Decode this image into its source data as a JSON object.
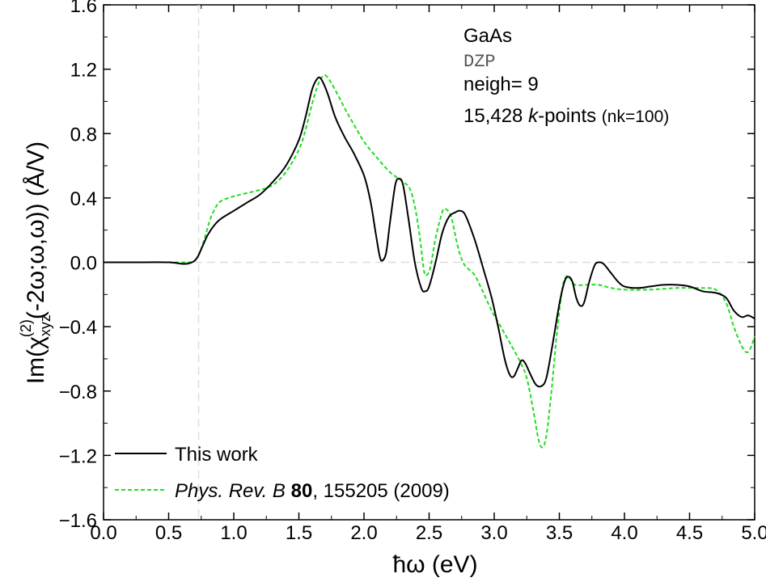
{
  "chart_data": {
    "type": "line",
    "xlabel": "ħω (eV)",
    "ylabel_parts": {
      "prefix": "Im(χ",
      "sub": "xyz",
      "sup": "(2)",
      "suffix": "(-2ω;ω,ω)) (Å/V)"
    },
    "xlim": [
      0.0,
      5.0
    ],
    "ylim": [
      -1.6,
      1.6
    ],
    "xticks": [
      "0.0",
      "0.5",
      "1.0",
      "1.5",
      "2.0",
      "2.5",
      "3.0",
      "3.5",
      "4.0",
      "4.5",
      "5.0"
    ],
    "yticks": [
      "1.6",
      "1.2",
      "0.8",
      "0.4",
      "0.0",
      "−0.4",
      "−0.8",
      "−1.2",
      "−1.6"
    ],
    "reference_lines": {
      "zero_line_y": 0.0,
      "vertical_x": 0.73
    },
    "annotations": {
      "material": "GaAs",
      "basis": "DZP",
      "neigh": "neigh= 9",
      "kpoints_count": "15,428",
      "kpoints_label": "k",
      "kpoints_suffix": "-points",
      "kpoints_nk": "(nk=100)"
    },
    "legend": {
      "position": "bottom-left",
      "entries": [
        {
          "label": "This work",
          "color": "#000000",
          "dash": "solid"
        },
        {
          "label_italic": "Phys. Rev. B",
          "label_bold": "80",
          "label_rest": ", 155205 (2009)",
          "color": "#22dd22",
          "dash": "dashed"
        }
      ]
    },
    "series": [
      {
        "name": "This work",
        "color": "#000000",
        "points": [
          [
            0.0,
            0.0
          ],
          [
            0.3,
            0.0
          ],
          [
            0.5,
            0.0
          ],
          [
            0.62,
            -0.01
          ],
          [
            0.68,
            0.0
          ],
          [
            0.72,
            0.03
          ],
          [
            0.76,
            0.1
          ],
          [
            0.8,
            0.17
          ],
          [
            0.85,
            0.23
          ],
          [
            0.9,
            0.27
          ],
          [
            1.0,
            0.32
          ],
          [
            1.1,
            0.37
          ],
          [
            1.2,
            0.42
          ],
          [
            1.3,
            0.5
          ],
          [
            1.4,
            0.6
          ],
          [
            1.5,
            0.76
          ],
          [
            1.55,
            0.9
          ],
          [
            1.6,
            1.07
          ],
          [
            1.64,
            1.14
          ],
          [
            1.67,
            1.14
          ],
          [
            1.72,
            1.05
          ],
          [
            1.78,
            0.9
          ],
          [
            1.85,
            0.78
          ],
          [
            1.92,
            0.68
          ],
          [
            2.0,
            0.54
          ],
          [
            2.05,
            0.38
          ],
          [
            2.09,
            0.18
          ],
          [
            2.12,
            0.04
          ],
          [
            2.14,
            0.01
          ],
          [
            2.17,
            0.06
          ],
          [
            2.2,
            0.25
          ],
          [
            2.24,
            0.48
          ],
          [
            2.27,
            0.52
          ],
          [
            2.3,
            0.48
          ],
          [
            2.34,
            0.28
          ],
          [
            2.39,
            0.0
          ],
          [
            2.44,
            -0.16
          ],
          [
            2.47,
            -0.18
          ],
          [
            2.5,
            -0.15
          ],
          [
            2.55,
            0.0
          ],
          [
            2.6,
            0.18
          ],
          [
            2.65,
            0.28
          ],
          [
            2.7,
            0.31
          ],
          [
            2.74,
            0.32
          ],
          [
            2.78,
            0.29
          ],
          [
            2.85,
            0.14
          ],
          [
            2.92,
            -0.05
          ],
          [
            2.98,
            -0.22
          ],
          [
            3.03,
            -0.4
          ],
          [
            3.08,
            -0.6
          ],
          [
            3.12,
            -0.7
          ],
          [
            3.15,
            -0.71
          ],
          [
            3.18,
            -0.66
          ],
          [
            3.21,
            -0.61
          ],
          [
            3.24,
            -0.63
          ],
          [
            3.28,
            -0.7
          ],
          [
            3.32,
            -0.76
          ],
          [
            3.36,
            -0.77
          ],
          [
            3.4,
            -0.72
          ],
          [
            3.45,
            -0.5
          ],
          [
            3.5,
            -0.26
          ],
          [
            3.54,
            -0.12
          ],
          [
            3.57,
            -0.09
          ],
          [
            3.6,
            -0.12
          ],
          [
            3.63,
            -0.22
          ],
          [
            3.66,
            -0.27
          ],
          [
            3.69,
            -0.25
          ],
          [
            3.73,
            -0.12
          ],
          [
            3.77,
            -0.02
          ],
          [
            3.8,
            0.0
          ],
          [
            3.84,
            -0.01
          ],
          [
            3.9,
            -0.07
          ],
          [
            3.95,
            -0.12
          ],
          [
            4.0,
            -0.15
          ],
          [
            4.1,
            -0.16
          ],
          [
            4.2,
            -0.15
          ],
          [
            4.3,
            -0.14
          ],
          [
            4.4,
            -0.14
          ],
          [
            4.5,
            -0.15
          ],
          [
            4.6,
            -0.18
          ],
          [
            4.7,
            -0.19
          ],
          [
            4.78,
            -0.22
          ],
          [
            4.84,
            -0.3
          ],
          [
            4.9,
            -0.34
          ],
          [
            4.95,
            -0.33
          ],
          [
            5.0,
            -0.35
          ]
        ]
      },
      {
        "name": "Phys. Rev. B 80, 155205 (2009)",
        "color": "#22dd22",
        "points": [
          [
            0.0,
            0.0
          ],
          [
            0.3,
            0.0
          ],
          [
            0.5,
            0.0
          ],
          [
            0.65,
            0.0
          ],
          [
            0.7,
            0.01
          ],
          [
            0.74,
            0.06
          ],
          [
            0.78,
            0.16
          ],
          [
            0.82,
            0.27
          ],
          [
            0.86,
            0.34
          ],
          [
            0.9,
            0.38
          ],
          [
            1.0,
            0.41
          ],
          [
            1.1,
            0.43
          ],
          [
            1.2,
            0.45
          ],
          [
            1.3,
            0.48
          ],
          [
            1.4,
            0.56
          ],
          [
            1.5,
            0.7
          ],
          [
            1.55,
            0.82
          ],
          [
            1.6,
            0.98
          ],
          [
            1.65,
            1.11
          ],
          [
            1.69,
            1.16
          ],
          [
            1.72,
            1.15
          ],
          [
            1.78,
            1.07
          ],
          [
            1.85,
            0.96
          ],
          [
            1.92,
            0.86
          ],
          [
            2.0,
            0.75
          ],
          [
            2.1,
            0.65
          ],
          [
            2.2,
            0.56
          ],
          [
            2.3,
            0.5
          ],
          [
            2.35,
            0.46
          ],
          [
            2.39,
            0.35
          ],
          [
            2.43,
            0.15
          ],
          [
            2.46,
            -0.05
          ],
          [
            2.48,
            -0.08
          ],
          [
            2.51,
            -0.03
          ],
          [
            2.55,
            0.15
          ],
          [
            2.6,
            0.31
          ],
          [
            2.63,
            0.33
          ],
          [
            2.67,
            0.28
          ],
          [
            2.72,
            0.1
          ],
          [
            2.76,
            0.0
          ],
          [
            2.8,
            -0.04
          ],
          [
            2.85,
            -0.08
          ],
          [
            2.9,
            -0.16
          ],
          [
            2.98,
            -0.3
          ],
          [
            3.05,
            -0.4
          ],
          [
            3.12,
            -0.5
          ],
          [
            3.2,
            -0.62
          ],
          [
            3.25,
            -0.72
          ],
          [
            3.3,
            -0.92
          ],
          [
            3.34,
            -1.1
          ],
          [
            3.37,
            -1.15
          ],
          [
            3.4,
            -1.08
          ],
          [
            3.44,
            -0.8
          ],
          [
            3.48,
            -0.45
          ],
          [
            3.52,
            -0.18
          ],
          [
            3.55,
            -0.09
          ],
          [
            3.58,
            -0.1
          ],
          [
            3.62,
            -0.14
          ],
          [
            3.7,
            -0.14
          ],
          [
            3.8,
            -0.14
          ],
          [
            3.9,
            -0.16
          ],
          [
            4.0,
            -0.17
          ],
          [
            4.2,
            -0.17
          ],
          [
            4.4,
            -0.16
          ],
          [
            4.6,
            -0.16
          ],
          [
            4.7,
            -0.17
          ],
          [
            4.78,
            -0.25
          ],
          [
            4.84,
            -0.4
          ],
          [
            4.9,
            -0.52
          ],
          [
            4.94,
            -0.56
          ],
          [
            4.97,
            -0.53
          ],
          [
            5.0,
            -0.46
          ]
        ]
      }
    ]
  }
}
